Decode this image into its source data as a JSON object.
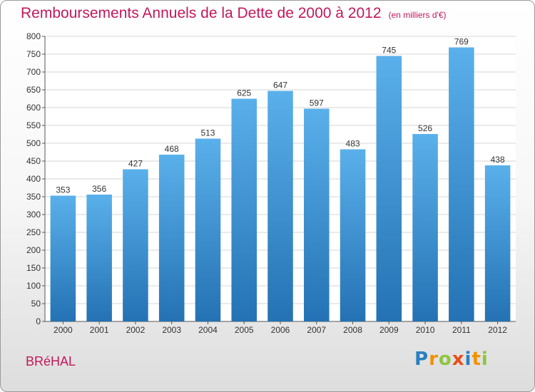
{
  "title": "Remboursements Annuels de la Dette de 2000 à 2012",
  "unit": "(en milliers d'€)",
  "commune": "BRéHAL",
  "brand": {
    "letters": [
      "P",
      "r",
      "o",
      "x",
      "i",
      "t",
      "i"
    ],
    "colors": [
      "#2a7fc0",
      "#f39200",
      "#8cc63f",
      "#e94e1b",
      "#2a7fc0",
      "#f39200",
      "#8cc63f"
    ]
  },
  "colors": {
    "bar_top": "#5ab0ea",
    "bar_bottom": "#2472b4",
    "title": "#c2185b",
    "grid": "#d6d6d6"
  },
  "chart_data": {
    "type": "bar",
    "title": "Remboursements Annuels de la Dette de 2000 à 2012",
    "xlabel": "",
    "ylabel": "",
    "categories": [
      "2000",
      "2001",
      "2002",
      "2003",
      "2004",
      "2005",
      "2006",
      "2007",
      "2008",
      "2009",
      "2010",
      "2011",
      "2012"
    ],
    "values": [
      353,
      356,
      427,
      468,
      513,
      625,
      647,
      597,
      483,
      745,
      526,
      769,
      438
    ],
    "ylim": [
      0,
      800
    ],
    "yticks": [
      0,
      50,
      100,
      150,
      200,
      250,
      300,
      350,
      400,
      450,
      500,
      550,
      600,
      650,
      700,
      750,
      800
    ],
    "grid": true,
    "legend": "none"
  }
}
